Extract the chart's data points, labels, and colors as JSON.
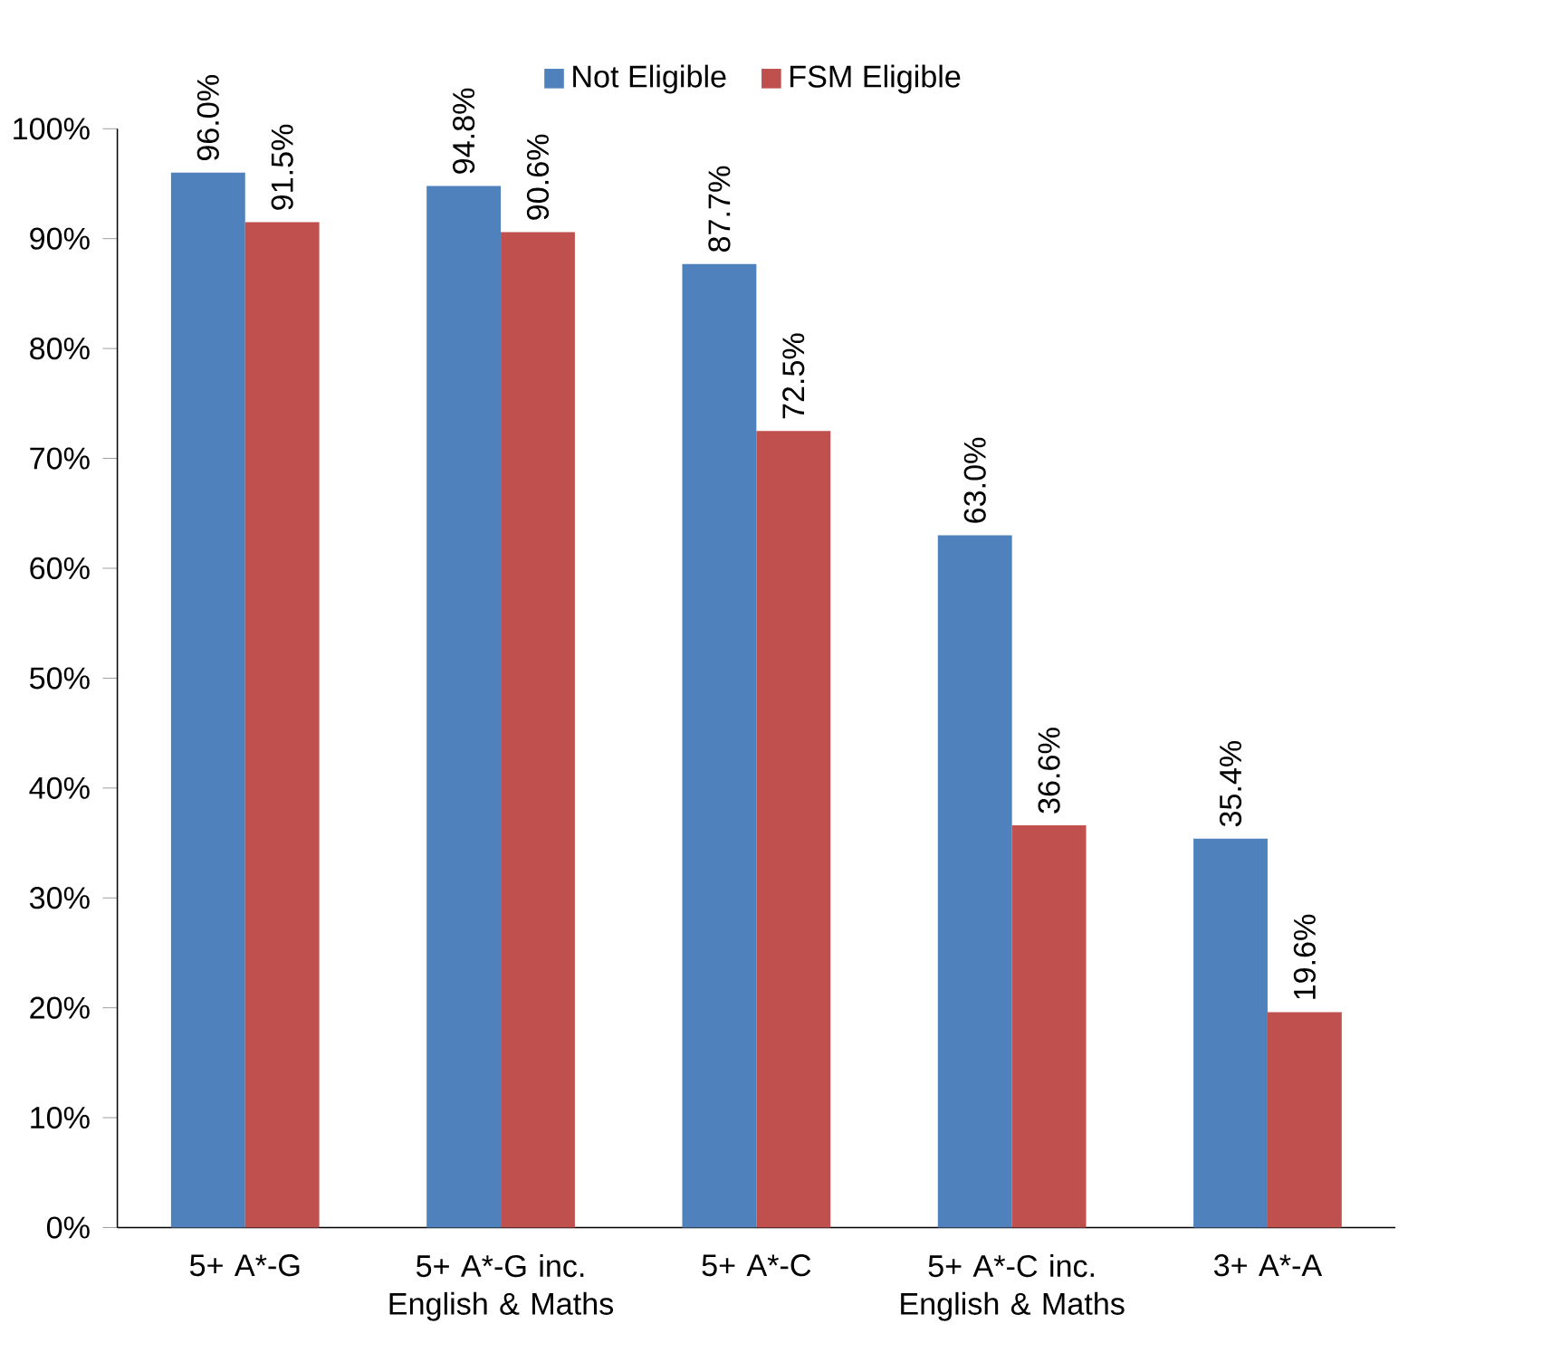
{
  "chart_data": {
    "type": "bar",
    "categories": [
      "5+ A*-G",
      "5+ A*-G inc. English & Maths",
      "5+ A*-C",
      "5+ A*-C inc. English & Maths",
      "3+ A*-A"
    ],
    "series": [
      {
        "name": "Not Eligible",
        "color": "#4f81bd",
        "values": [
          96.0,
          94.8,
          87.7,
          63.0,
          35.4
        ],
        "value_labels": [
          "96.0%",
          "94.8%",
          "87.7%",
          "63.0%",
          "35.4%"
        ]
      },
      {
        "name": "FSM Eligible",
        "color": "#c0504d",
        "values": [
          91.5,
          90.6,
          72.5,
          36.6,
          19.6
        ],
        "value_labels": [
          "91.5%",
          "90.6%",
          "72.5%",
          "36.6%",
          "19.6%"
        ]
      }
    ],
    "ylim": [
      0,
      100
    ],
    "yticks": [
      {
        "value": 0,
        "label": "0%"
      },
      {
        "value": 10,
        "label": "10%"
      },
      {
        "value": 20,
        "label": "20%"
      },
      {
        "value": 30,
        "label": "30%"
      },
      {
        "value": 40,
        "label": "40%"
      },
      {
        "value": 50,
        "label": "50%"
      },
      {
        "value": 60,
        "label": "60%"
      },
      {
        "value": 70,
        "label": "70%"
      },
      {
        "value": 80,
        "label": "80%"
      },
      {
        "value": 90,
        "label": "90%"
      },
      {
        "value": 100,
        "label": "100%"
      }
    ],
    "grid": false,
    "legend": "top"
  }
}
